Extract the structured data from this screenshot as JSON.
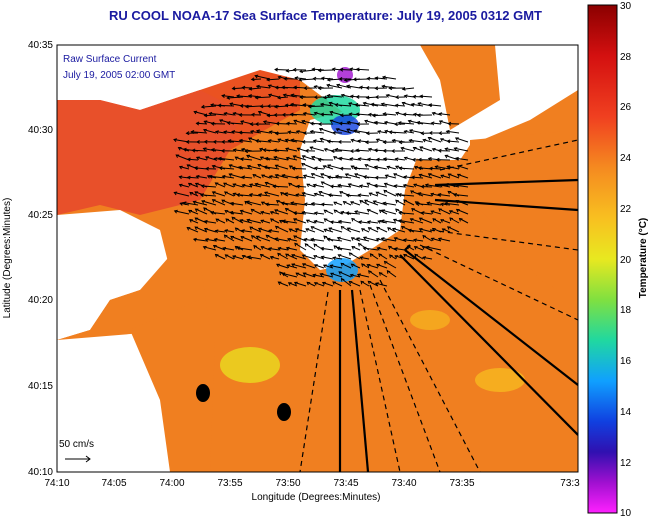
{
  "title": "RU COOL  NOAA-17  Sea Surface Temperature:  July 19, 2005 0312 GMT",
  "overlay": {
    "line1": "Raw Surface Current",
    "line2": "July 19, 2005 02:00 GMT"
  },
  "scale_label": "50 cm/s",
  "x_axis": {
    "label": "Longitude (Degrees:Minutes)",
    "ticks": [
      "74:10",
      "74:05",
      "74:00",
      "73:55",
      "73:50",
      "73:45",
      "73:40",
      "73:35",
      "73:3"
    ]
  },
  "y_axis": {
    "label": "Latitude (Degrees:Minutes)",
    "ticks": [
      "40:35",
      "40:30",
      "40:25",
      "40:20",
      "40:15",
      "40:10"
    ]
  },
  "colorbar": {
    "label": "Temperature (°C)",
    "ticks": [
      "30",
      "28",
      "26",
      "24",
      "22",
      "20",
      "18",
      "16",
      "14",
      "12",
      "10"
    ]
  },
  "colors": {
    "title": "#1a1aa0",
    "sst_base": "#f07f20",
    "land": "#ffffff",
    "cold_patch": "#00c8ff"
  }
}
